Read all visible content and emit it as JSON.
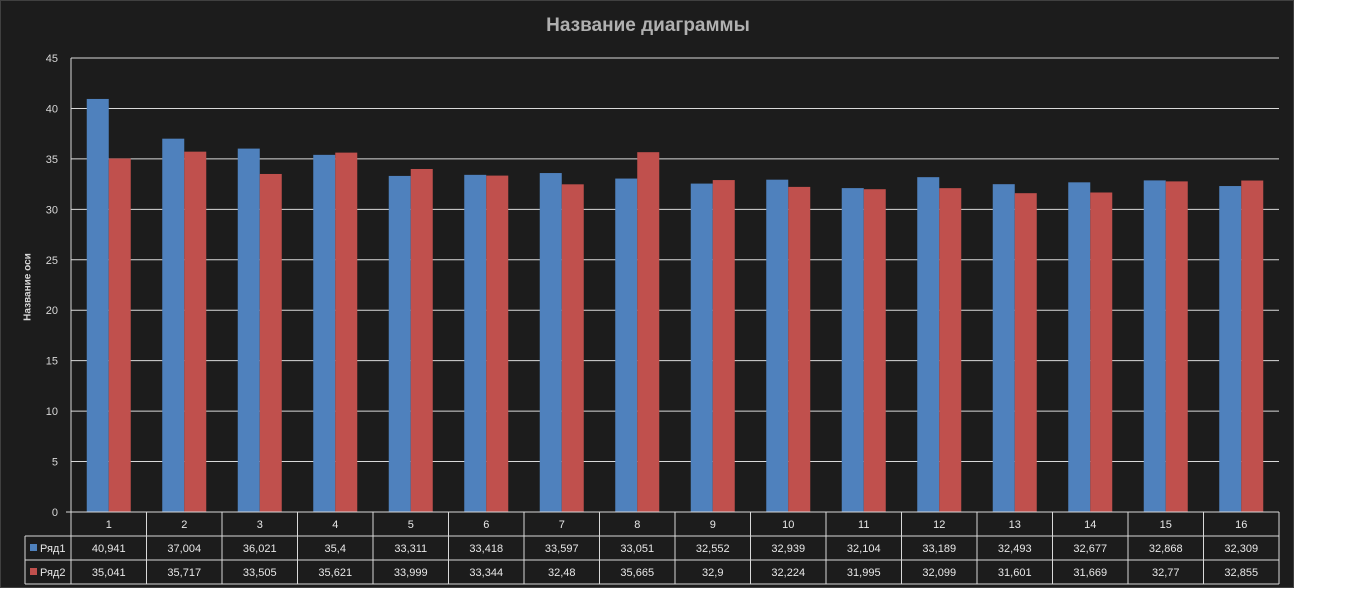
{
  "colors": {
    "background": "#1c1c1c",
    "gridline": "#d9d9d9",
    "text": "#d8d8d8",
    "series1": "#4f81bd",
    "series2": "#c0504d"
  },
  "chart_data": {
    "type": "bar",
    "title": "Название диаграммы",
    "xlabel": "",
    "ylabel": "Название оси",
    "ylim": [
      0,
      45
    ],
    "yticks": [
      "0",
      "5",
      "10",
      "15",
      "20",
      "25",
      "30",
      "35",
      "40",
      "45"
    ],
    "grid": true,
    "legend": "data-table",
    "categories": [
      "1",
      "2",
      "3",
      "4",
      "5",
      "6",
      "7",
      "8",
      "9",
      "10",
      "11",
      "12",
      "13",
      "14",
      "15",
      "16"
    ],
    "series": [
      {
        "name": "Ряд1",
        "color": "#4f81bd",
        "values": [
          40.941,
          37.004,
          36.021,
          35.4,
          33.311,
          33.418,
          33.597,
          33.051,
          32.552,
          32.939,
          32.104,
          33.189,
          32.493,
          32.677,
          32.868,
          32.309
        ],
        "labels": [
          "40,941",
          "37,004",
          "36,021",
          "35,4",
          "33,311",
          "33,418",
          "33,597",
          "33,051",
          "32,552",
          "32,939",
          "32,104",
          "33,189",
          "32,493",
          "32,677",
          "32,868",
          "32,309"
        ]
      },
      {
        "name": "Ряд2",
        "color": "#c0504d",
        "values": [
          35.041,
          35.717,
          33.505,
          35.621,
          33.999,
          33.344,
          32.48,
          35.665,
          32.9,
          32.224,
          31.995,
          32.099,
          31.601,
          31.669,
          32.77,
          32.855
        ],
        "labels": [
          "35,041",
          "35,717",
          "33,505",
          "35,621",
          "33,999",
          "33,344",
          "32,48",
          "35,665",
          "32,9",
          "32,224",
          "31,995",
          "32,099",
          "31,601",
          "31,669",
          "32,77",
          "32,855"
        ]
      }
    ]
  }
}
